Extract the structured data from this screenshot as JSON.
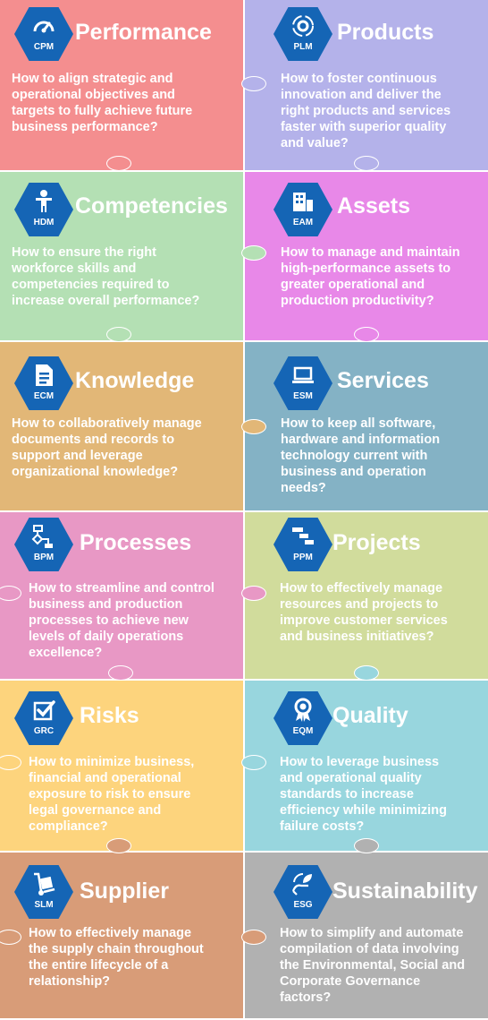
{
  "colors": {
    "hex_blue": "#1565b5",
    "performance": "#f48e8f",
    "products": "#b4b2ea",
    "competencies": "#b4e0b4",
    "assets": "#e888e8",
    "knowledge": "#e2b777",
    "services": "#84b2c5",
    "processes": "#e898c5",
    "projects": "#d1dc9c",
    "risks": "#fdd47d",
    "quality": "#98d6de",
    "supplier": "#d89c78",
    "sustainability": "#b1b1b1"
  },
  "tiles": [
    {
      "key": "performance",
      "code": "CPM",
      "icon": "speedometer-icon",
      "title": "Performance",
      "lines": [
        "How to align strategic and",
        "operational objectives and",
        "targets to fully achieve future",
        "business performance?"
      ]
    },
    {
      "key": "products",
      "code": "PLM",
      "icon": "gear-cycle-icon",
      "title": "Products",
      "lines": [
        "How to foster continuous",
        "innovation and deliver the",
        "right products and services",
        "faster with superior quality",
        "and value?"
      ]
    },
    {
      "key": "competencies",
      "code": "HDM",
      "icon": "person-icon",
      "title": "Competencies",
      "lines": [
        "How to ensure the right",
        "workforce skills and",
        "competencies required to",
        "increase overall performance?"
      ]
    },
    {
      "key": "assets",
      "code": "EAM",
      "icon": "building-icon",
      "title": "Assets",
      "lines": [
        "How to manage and maintain",
        "high-performance assets to",
        "greater operational and",
        "production productivity?"
      ]
    },
    {
      "key": "knowledge",
      "code": "ECM",
      "icon": "document-icon",
      "title": "Knowledge",
      "lines": [
        "How to collaboratively manage",
        "documents and records to",
        "support and leverage",
        "organizational knowledge?"
      ]
    },
    {
      "key": "services",
      "code": "ESM",
      "icon": "laptop-icon",
      "title": "Services",
      "lines": [
        "How to keep all software,",
        "hardware and information",
        "technology current with",
        "business and operation",
        "needs?"
      ]
    },
    {
      "key": "processes",
      "code": "BPM",
      "icon": "flowchart-icon",
      "title": "Processes",
      "lines": [
        "How to streamline and control",
        "business and production",
        "processes to achieve new",
        "levels of daily operations",
        "excellence?"
      ]
    },
    {
      "key": "projects",
      "code": "PPM",
      "icon": "gantt-icon",
      "title": "Projects",
      "lines": [
        "How to effectively manage",
        "resources and projects to",
        "improve customer services",
        "and business initiatives?"
      ]
    },
    {
      "key": "risks",
      "code": "GRC",
      "icon": "checkbox-icon",
      "title": "Risks",
      "lines": [
        "How to minimize business,",
        "financial and operational",
        "exposure to risk to ensure",
        "legal governance and",
        "compliance?"
      ]
    },
    {
      "key": "quality",
      "code": "EQM",
      "icon": "award-ribbon-icon",
      "title": "Quality",
      "lines": [
        "How to leverage business",
        "and operational quality",
        "standards to increase",
        "efficiency while minimizing",
        "failure costs?"
      ]
    },
    {
      "key": "supplier",
      "code": "SLM",
      "icon": "hand-truck-icon",
      "title": "Supplier",
      "lines": [
        "How to effectively manage",
        "the supply chain throughout",
        "the entire lifecycle of a",
        "relationship?"
      ]
    },
    {
      "key": "sustainability",
      "code": "ESG",
      "icon": "leaf-hands-icon",
      "title": "Sustainability",
      "lines": [
        "How to simplify and automate",
        "compilation of data involving",
        "the Environmental, Social and",
        "Corporate Governance",
        "factors?"
      ]
    }
  ]
}
